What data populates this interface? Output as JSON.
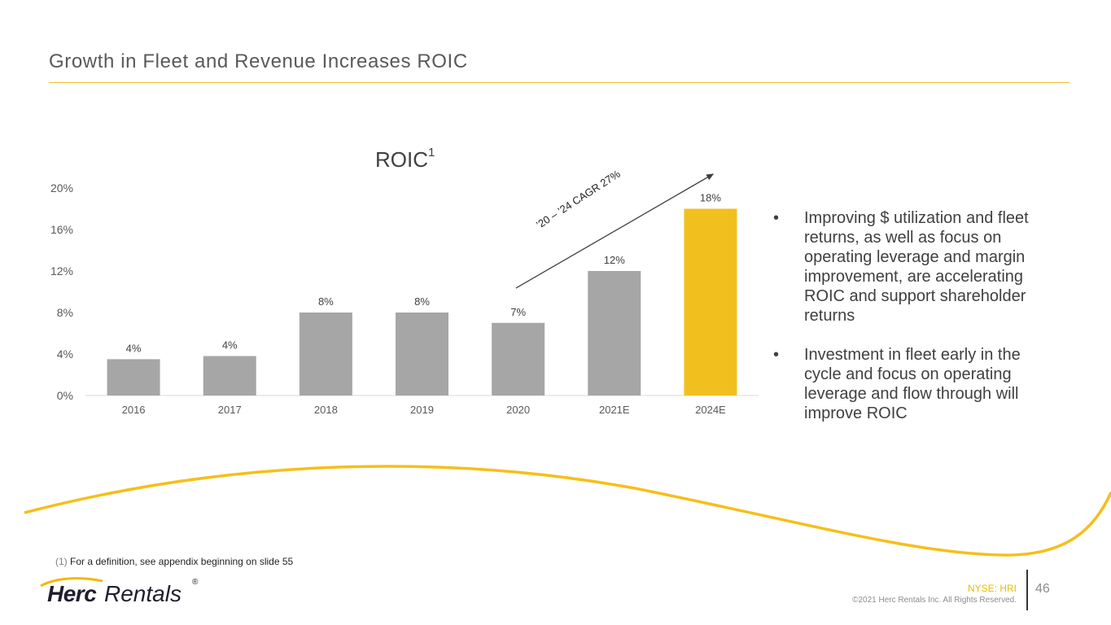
{
  "slide": {
    "title": "Growth in Fleet and Revenue Increases ROIC",
    "footnote_number": "(1)",
    "footnote_text": "For a definition, see appendix beginning on slide 55",
    "ticker": "NYSE: HRI",
    "copyright": "©2021 Herc Rentals Inc.  All Rights Reserved.",
    "page_number": "46",
    "logo_part1": "Herc",
    "logo_part2": "Rentals",
    "logo_registered": "®"
  },
  "bullets": [
    "Improving $ utilization and fleet returns, as well as focus on operating leverage and margin improvement, are accelerating ROIC and support shareholder returns",
    "Investment in fleet early in the cycle and focus on operating leverage and flow through will improve ROIC"
  ],
  "bullet_symbol": "•",
  "chart_data": {
    "type": "bar",
    "title": "ROIC",
    "title_superscript": "1",
    "categories": [
      "2016",
      "2017",
      "2018",
      "2019",
      "2020",
      "2021E",
      "2024E"
    ],
    "values": [
      3.5,
      3.8,
      8,
      8,
      7,
      12,
      18
    ],
    "data_labels": [
      "4%",
      "4%",
      "8%",
      "8%",
      "7%",
      "12%",
      "18%"
    ],
    "highlight_index": 6,
    "ylim": [
      0,
      20
    ],
    "yticks": [
      0,
      4,
      8,
      12,
      16,
      20
    ],
    "ytick_labels": [
      "0%",
      "4%",
      "8%",
      "12%",
      "16%",
      "20%"
    ],
    "annotation": "’20 – ’24 CAGR 27%",
    "colors": {
      "bar": "#a6a6a6",
      "highlight": "#f2c01e",
      "axis": "#d9d9d9",
      "arrow": "#404040",
      "wave": "#f5b800"
    }
  }
}
